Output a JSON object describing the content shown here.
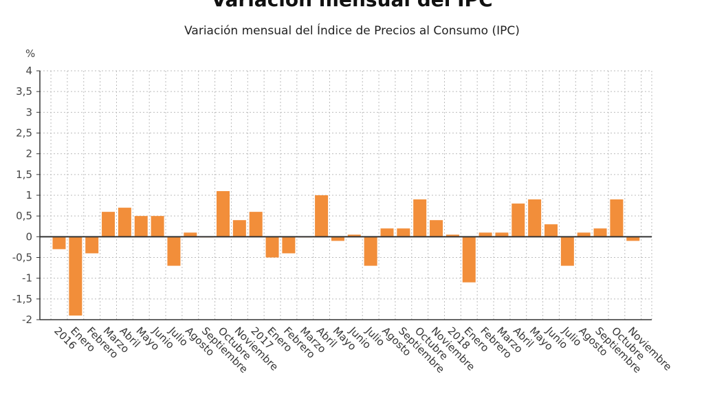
{
  "chart_data": {
    "type": "bar",
    "title": "Variación mensual del IPC",
    "subtitle": "Variación mensual del Índice de Precios al Consumo (IPC)",
    "ylabel": "%",
    "xlabel": "",
    "ylim": [
      -2,
      4
    ],
    "yticks": [
      "4",
      "3,5",
      "3",
      "2,5",
      "2",
      "1,5",
      "1",
      "0,5",
      "0",
      "-0,5",
      "-1",
      "-1,5",
      "-2"
    ],
    "ytick_values": [
      4,
      3.5,
      3,
      2.5,
      2,
      1.5,
      1,
      0.5,
      0,
      -0.5,
      -1,
      -1.5,
      -2
    ],
    "grid": true,
    "bar_color": "#f28e3a",
    "categories": [
      "2016",
      "Enero",
      "Febrero",
      "Marzo",
      "Abril",
      "Mayo",
      "Junio",
      "Julio",
      "Agosto",
      "Septiembre",
      "Octubre",
      "Noviembre",
      "2017",
      "Enero",
      "Febrero",
      "Marzo",
      "Abril",
      "Mayo",
      "Junio",
      "Julio",
      "Agosto",
      "Septiembre",
      "Octubre",
      "Noviembre",
      "2018",
      "Enero",
      "Febrero",
      "Marzo",
      "Abril",
      "Mayo",
      "Junio",
      "Julio",
      "Agosto",
      "Septiembre",
      "Octubre",
      "Noviembre"
    ],
    "values": [
      -0.3,
      -1.9,
      -0.4,
      0.6,
      0.7,
      0.5,
      0.5,
      -0.7,
      0.1,
      0.0,
      1.1,
      0.4,
      0.6,
      -0.5,
      -0.4,
      0.0,
      1.0,
      -0.1,
      0.05,
      -0.7,
      0.2,
      0.2,
      0.9,
      0.4,
      0.05,
      -1.1,
      0.1,
      0.1,
      0.8,
      0.9,
      0.3,
      -0.7,
      0.1,
      0.2,
      0.9,
      -0.1
    ]
  }
}
